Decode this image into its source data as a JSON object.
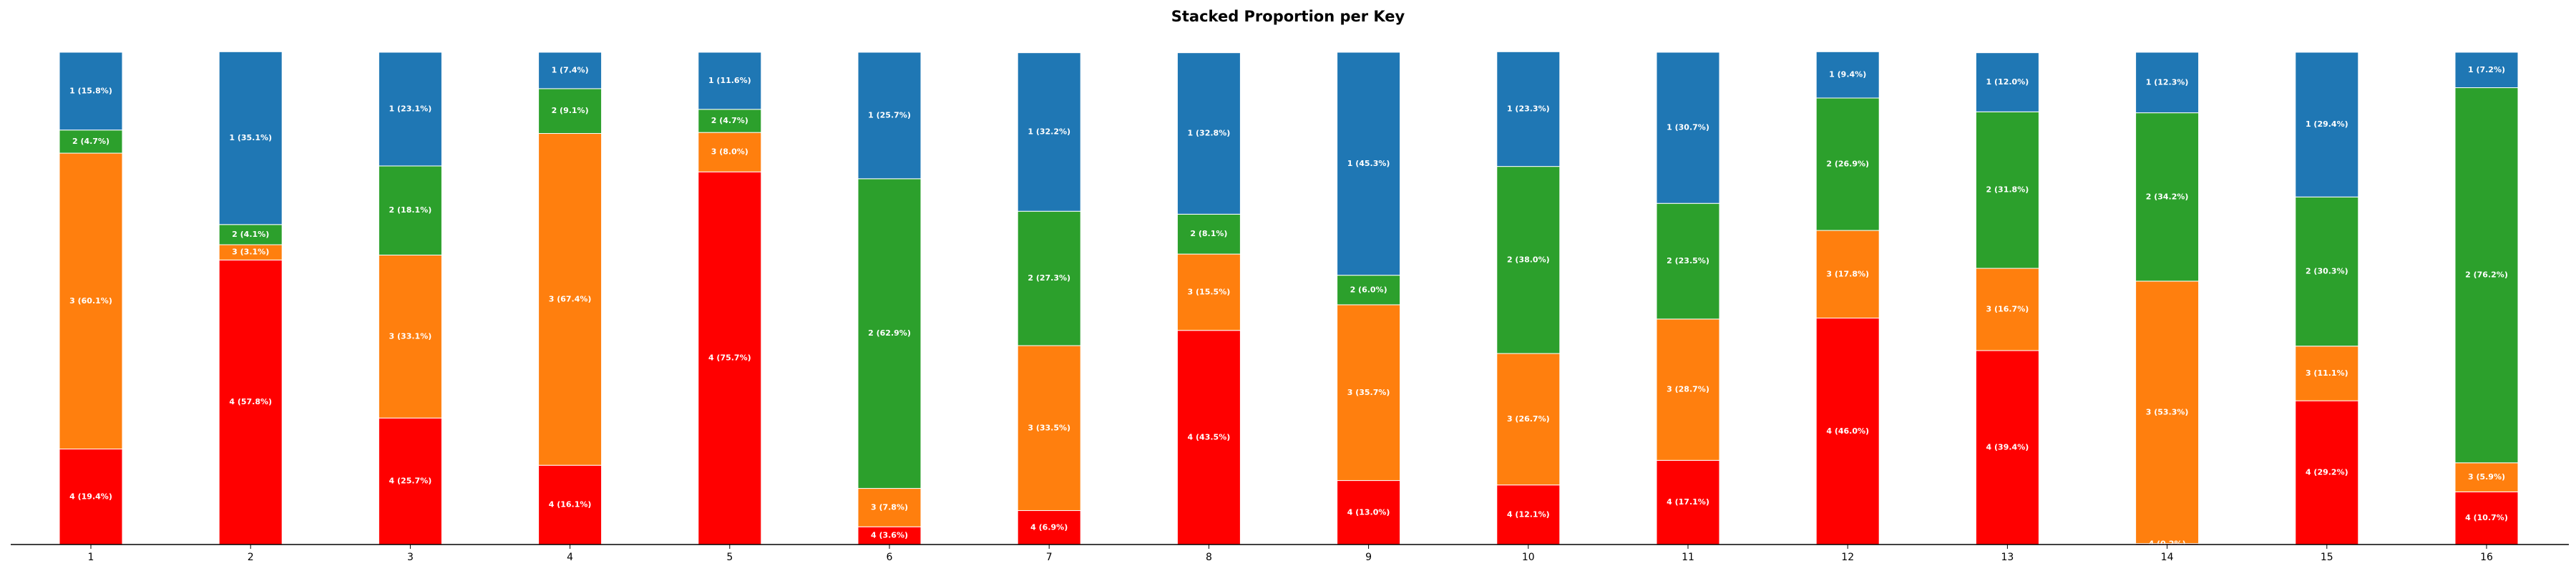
{
  "chart_data": {
    "type": "bar",
    "stacked": true,
    "normalized": true,
    "title": "Stacked Proportion per Key",
    "xlabel": "",
    "ylabel": "",
    "ylim": [
      0,
      100
    ],
    "grid": false,
    "categories": [
      "1",
      "2",
      "3",
      "4",
      "5",
      "6",
      "7",
      "8",
      "9",
      "10",
      "11",
      "12",
      "13",
      "14",
      "15",
      "16"
    ],
    "series": [
      {
        "key": "4",
        "color": "#ff0000",
        "values": [
          19.4,
          57.8,
          25.7,
          16.1,
          75.7,
          3.6,
          6.9,
          43.5,
          13.0,
          12.1,
          17.1,
          46.0,
          39.4,
          0.2,
          29.2,
          10.7
        ]
      },
      {
        "key": "3",
        "color": "#ff7f0e",
        "values": [
          60.1,
          3.1,
          33.1,
          67.4,
          8.0,
          7.8,
          33.5,
          15.5,
          35.7,
          26.7,
          28.7,
          17.8,
          16.7,
          53.3,
          11.1,
          5.9
        ]
      },
      {
        "key": "2",
        "color": "#2ca02c",
        "values": [
          4.7,
          4.1,
          18.1,
          9.1,
          4.7,
          62.9,
          27.3,
          8.1,
          6.0,
          38.0,
          23.5,
          26.9,
          31.8,
          34.2,
          30.3,
          76.2
        ]
      },
      {
        "key": "1",
        "color": "#1f77b4",
        "values": [
          15.8,
          35.1,
          23.1,
          7.4,
          11.6,
          25.7,
          32.2,
          32.8,
          45.3,
          23.3,
          30.7,
          9.4,
          12.0,
          12.3,
          29.4,
          7.2
        ]
      }
    ]
  }
}
